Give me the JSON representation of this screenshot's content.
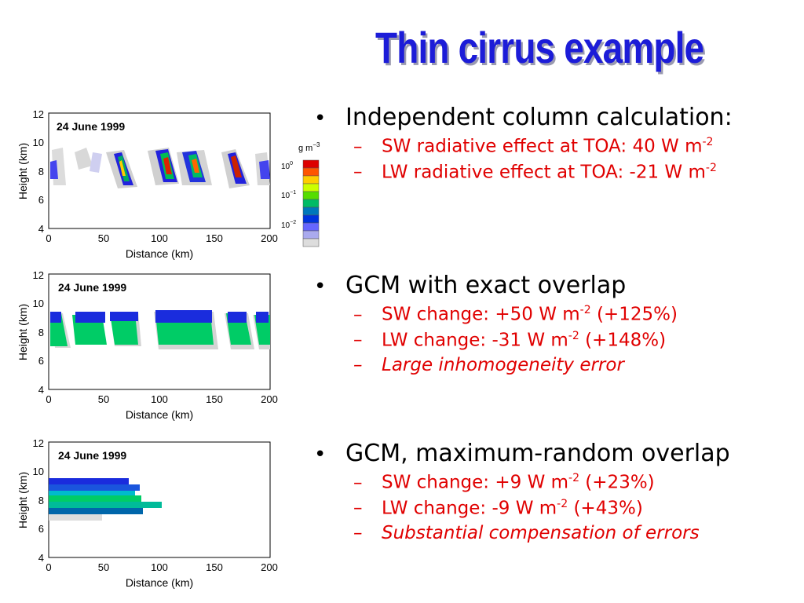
{
  "slide": {
    "title": "Thin cirrus example",
    "panels": [
      {
        "date": "24 June 1999",
        "xlabel": "Distance (km)",
        "ylabel": "Height (km)",
        "xticks": [
          "0",
          "50",
          "100",
          "150",
          "200"
        ],
        "yticks": [
          "4",
          "6",
          "8",
          "10",
          "12"
        ]
      },
      {
        "date": "24 June 1999",
        "xlabel": "Distance (km)",
        "ylabel": "Height (km)",
        "xticks": [
          "0",
          "50",
          "100",
          "150",
          "200"
        ],
        "yticks": [
          "4",
          "6",
          "8",
          "10",
          "12"
        ]
      },
      {
        "date": "24 June 1999",
        "xlabel": "Distance (km)",
        "ylabel": "Height (km)",
        "xticks": [
          "0",
          "50",
          "100",
          "150",
          "200"
        ],
        "yticks": [
          "4",
          "6",
          "8",
          "10",
          "12"
        ]
      }
    ],
    "colorbar": {
      "unit_base": "g m",
      "unit_exp": "−3",
      "ticks": [
        {
          "base": "10",
          "exp": "0"
        },
        {
          "base": "10",
          "exp": "−1"
        },
        {
          "base": "10",
          "exp": "−2"
        }
      ],
      "colors": [
        "#dd0000",
        "#ff5500",
        "#ffcc00",
        "#ccff00",
        "#55dd00",
        "#00bb66",
        "#0077bb",
        "#0033dd",
        "#6666ff",
        "#aaaaee",
        "#dddddd"
      ]
    },
    "bullets": [
      {
        "heading": "Independent column calculation:",
        "items": [
          {
            "pre": "SW radiative effect at TOA: 40 W m",
            "sup": "-2",
            "post": "",
            "italic": false
          },
          {
            "pre": "LW radiative effect at TOA: -21 W m",
            "sup": "-2",
            "post": "",
            "italic": false
          }
        ]
      },
      {
        "heading": "GCM with exact overlap",
        "items": [
          {
            "pre": "SW change: +50 W m",
            "sup": "-2",
            "post": " (+125%)",
            "italic": false
          },
          {
            "pre": "LW change: -31 W m",
            "sup": "-2",
            "post": " (+148%)",
            "italic": false
          },
          {
            "pre": "Large inhomogeneity error",
            "sup": "",
            "post": "",
            "italic": true
          }
        ]
      },
      {
        "heading": "GCM, maximum-random overlap",
        "items": [
          {
            "pre": "SW change: +9 W m",
            "sup": "-2",
            "post": " (+23%)",
            "italic": false
          },
          {
            "pre": "LW change: -9 W m",
            "sup": "-2",
            "post": " (+43%)",
            "italic": false
          },
          {
            "pre": "Substantial compensation of errors",
            "sup": "",
            "post": "",
            "italic": true
          }
        ]
      }
    ]
  }
}
